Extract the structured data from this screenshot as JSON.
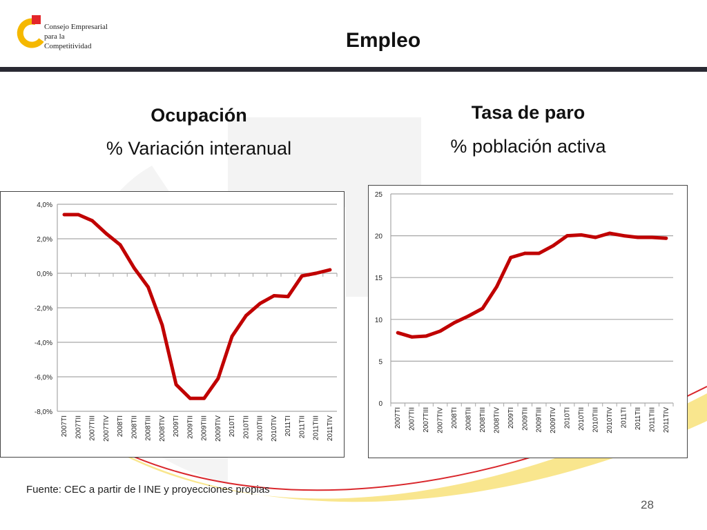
{
  "slide": {
    "title": "Empleo",
    "page_number": "28",
    "source": "Fuente: CEC a partir de l INE y proyecciones propias"
  },
  "logo": {
    "text": "Consejo Empresarial\npara la\nCompetitividad",
    "colors": {
      "ring": "#f5b800",
      "square": "#e3262a"
    }
  },
  "left": {
    "heading": "Ocupación",
    "subheading": "% Variación interanual"
  },
  "right": {
    "heading": "Tasa de paro",
    "subheading": "% población activa"
  },
  "colors": {
    "line": "#c00000",
    "grid": "#a6a6a6",
    "title_rule": "#2a2a33"
  },
  "chart_data": [
    {
      "type": "line",
      "categories": [
        "2007TI",
        "2007TII",
        "2007TIII",
        "2007TIV",
        "2008TI",
        "2008TII",
        "2008TIII",
        "2008TIV",
        "2009TI",
        "2009TII",
        "2009TIII",
        "2009TIV",
        "2010TI",
        "2010TII",
        "2010TIII",
        "2010TIV",
        "2011TI",
        "2011TII",
        "2011TIII",
        "2011TIV"
      ],
      "series": [
        {
          "values": [
            3.4,
            3.4,
            3.05,
            2.3,
            1.65,
            0.3,
            -0.8,
            -3.0,
            -6.45,
            -7.25,
            -7.25,
            -6.1,
            -3.65,
            -2.45,
            -1.75,
            -1.3,
            -1.35,
            -0.15,
            0.0,
            0.2
          ]
        }
      ],
      "ylim": [
        -8,
        4
      ],
      "yticks": [
        "4,0%",
        "2,0%",
        "0,0%",
        "-2,0%",
        "-4,0%",
        "-6,0%",
        "-8,0%"
      ],
      "ytick_values": [
        4,
        2,
        0,
        -2,
        -4,
        -6,
        -8
      ],
      "grid": true,
      "legend": "none"
    },
    {
      "type": "line",
      "categories": [
        "2007TI",
        "2007TII",
        "2007TIII",
        "2007TIV",
        "2008TI",
        "2008TII",
        "2008TIII",
        "2008TIV",
        "2009TI",
        "2009TII",
        "2009TIII",
        "2009TIV",
        "2010TI",
        "2010TII",
        "2010TIII",
        "2010TIV",
        "2011TI",
        "2011TII",
        "2011TIII",
        "2011TIV"
      ],
      "series": [
        {
          "values": [
            8.4,
            7.9,
            8.0,
            8.6,
            9.6,
            10.4,
            11.3,
            13.9,
            17.4,
            17.9,
            17.9,
            18.8,
            20.0,
            20.1,
            19.8,
            20.3,
            20.0,
            19.8,
            19.8,
            19.7
          ]
        }
      ],
      "ylim": [
        0,
        25
      ],
      "yticks": [
        "25",
        "20",
        "15",
        "10",
        "5",
        "0"
      ],
      "ytick_values": [
        25,
        20,
        15,
        10,
        5,
        0
      ],
      "grid": true,
      "legend": "none"
    }
  ]
}
